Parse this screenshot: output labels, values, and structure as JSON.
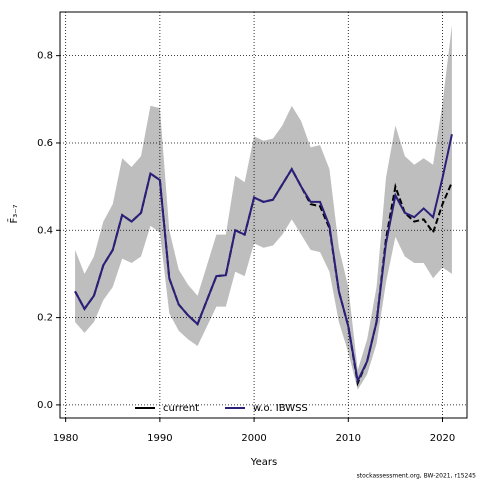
{
  "chart_data": {
    "type": "line",
    "x_label": "Years",
    "y_label": "F̄₃₋₇",
    "footnote": "stockassessment.org, BW-2021, r15245",
    "x": [
      1981,
      1982,
      1983,
      1984,
      1985,
      1986,
      1987,
      1988,
      1989,
      1990,
      1991,
      1992,
      1993,
      1994,
      1995,
      1996,
      1997,
      1998,
      1999,
      2000,
      2001,
      2002,
      2003,
      2004,
      2005,
      2006,
      2007,
      2008,
      2009,
      2010,
      2011,
      2012,
      2013,
      2014,
      2015,
      2016,
      2017,
      2018,
      2019,
      2020,
      2021
    ],
    "band": {
      "color": "#bebebe",
      "upper": [
        0.355,
        0.3,
        0.34,
        0.42,
        0.46,
        0.565,
        0.545,
        0.57,
        0.685,
        0.68,
        0.4,
        0.31,
        0.275,
        0.25,
        0.32,
        0.39,
        0.39,
        0.525,
        0.51,
        0.615,
        0.605,
        0.61,
        0.64,
        0.685,
        0.65,
        0.59,
        0.595,
        0.54,
        0.36,
        0.27,
        0.08,
        0.15,
        0.27,
        0.52,
        0.64,
        0.57,
        0.55,
        0.565,
        0.55,
        0.69,
        0.87
      ],
      "lower": [
        0.19,
        0.165,
        0.19,
        0.24,
        0.27,
        0.335,
        0.325,
        0.34,
        0.41,
        0.395,
        0.21,
        0.17,
        0.15,
        0.135,
        0.18,
        0.225,
        0.225,
        0.305,
        0.295,
        0.37,
        0.36,
        0.365,
        0.39,
        0.425,
        0.39,
        0.355,
        0.35,
        0.305,
        0.19,
        0.12,
        0.035,
        0.07,
        0.14,
        0.28,
        0.385,
        0.34,
        0.325,
        0.325,
        0.29,
        0.315,
        0.3
      ]
    },
    "series": [
      {
        "name": "current",
        "color": "#000000",
        "dashed": true,
        "values": [
          0.26,
          0.22,
          0.25,
          0.32,
          0.355,
          0.435,
          0.42,
          0.44,
          0.53,
          0.515,
          0.29,
          0.23,
          0.205,
          0.185,
          0.24,
          0.295,
          0.297,
          0.4,
          0.39,
          0.475,
          0.465,
          0.47,
          0.505,
          0.54,
          0.5,
          0.46,
          0.455,
          0.405,
          0.26,
          0.18,
          0.05,
          0.1,
          0.19,
          0.38,
          0.5,
          0.44,
          0.42,
          0.425,
          0.395,
          0.46,
          0.51
        ]
      },
      {
        "name": "w.o. IBWSS",
        "color": "#2a1f7a",
        "dashed": false,
        "values": [
          0.26,
          0.22,
          0.25,
          0.32,
          0.355,
          0.435,
          0.42,
          0.44,
          0.53,
          0.515,
          0.29,
          0.23,
          0.205,
          0.185,
          0.24,
          0.295,
          0.297,
          0.4,
          0.39,
          0.475,
          0.465,
          0.47,
          0.505,
          0.54,
          0.5,
          0.465,
          0.465,
          0.41,
          0.26,
          0.18,
          0.055,
          0.1,
          0.19,
          0.37,
          0.48,
          0.44,
          0.43,
          0.45,
          0.43,
          0.52,
          0.62
        ]
      }
    ],
    "xlim": [
      1979.4,
      2022.6
    ],
    "xticks": [
      1980,
      1990,
      2000,
      2010,
      2020
    ],
    "ylim": [
      -0.03,
      0.9
    ],
    "yticks": [
      {
        "value": 0,
        "label": "0.0"
      },
      0.2,
      0.4,
      0.6,
      0.8
    ],
    "grid": true,
    "legend": "bottom"
  }
}
